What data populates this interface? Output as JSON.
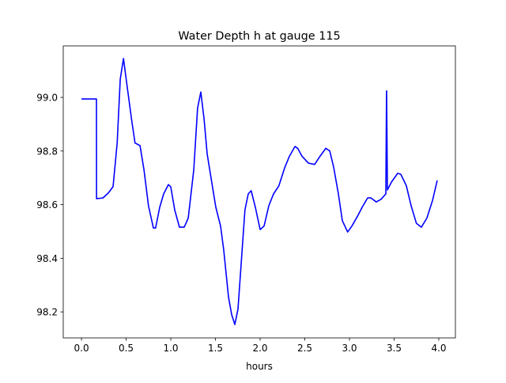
{
  "chart_data": {
    "type": "line",
    "title": "Water Depth h at gauge 115",
    "xlabel": "hours",
    "ylabel": "",
    "xlim": [
      -0.204,
      4.186
    ],
    "ylim": [
      98.103,
      99.192
    ],
    "xticks": [
      0.0,
      0.5,
      1.0,
      1.5,
      2.0,
      2.5,
      3.0,
      3.5,
      4.0
    ],
    "xtick_labels": [
      "0.0",
      "0.5",
      "1.0",
      "1.5",
      "2.0",
      "2.5",
      "3.0",
      "3.5",
      "4.0"
    ],
    "yticks": [
      98.2,
      98.4,
      98.6,
      98.8,
      99.0
    ],
    "ytick_labels": [
      "98.2",
      "98.4",
      "98.6",
      "98.8",
      "99.0"
    ],
    "grid": false,
    "series": [
      {
        "name": "h",
        "color": "#0000ff",
        "x": [
          0,
          0.168,
          0.169,
          0.24,
          0.3,
          0.354,
          0.4,
          0.434,
          0.47,
          0.5,
          0.56,
          0.6,
          0.655,
          0.7,
          0.75,
          0.805,
          0.83,
          0.876,
          0.92,
          0.973,
          1.0,
          1.044,
          1.097,
          1.15,
          1.195,
          1.257,
          1.3,
          1.336,
          1.372,
          1.407,
          1.46,
          1.504,
          1.557,
          1.593,
          1.646,
          1.681,
          1.717,
          1.752,
          1.796,
          1.83,
          1.867,
          1.9,
          1.947,
          2.0,
          2.044,
          2.097,
          2.15,
          2.21,
          2.274,
          2.327,
          2.39,
          2.42,
          2.47,
          2.54,
          2.61,
          2.67,
          2.735,
          2.78,
          2.823,
          2.876,
          2.92,
          2.98,
          3.027,
          3.09,
          3.142,
          3.204,
          3.24,
          3.3,
          3.354,
          3.407,
          3.415,
          3.416,
          3.425,
          3.47,
          3.54,
          3.575,
          3.637,
          3.69,
          3.75,
          3.805,
          3.867,
          3.93,
          3.982
        ],
        "y": [
          98.994,
          98.994,
          98.622,
          98.625,
          98.643,
          98.667,
          98.83,
          99.068,
          99.145,
          99.07,
          98.92,
          98.83,
          98.82,
          98.73,
          98.596,
          98.513,
          98.513,
          98.59,
          98.64,
          98.675,
          98.666,
          98.58,
          98.516,
          98.516,
          98.55,
          98.73,
          98.96,
          99.02,
          98.92,
          98.79,
          98.68,
          98.59,
          98.52,
          98.43,
          98.256,
          98.19,
          98.153,
          98.21,
          98.42,
          98.58,
          98.64,
          98.652,
          98.59,
          98.507,
          98.52,
          98.596,
          98.64,
          98.67,
          98.737,
          98.78,
          98.817,
          98.81,
          98.78,
          98.755,
          98.75,
          98.78,
          98.81,
          98.8,
          98.74,
          98.64,
          98.54,
          98.498,
          98.52,
          98.557,
          98.59,
          98.625,
          98.625,
          98.61,
          98.62,
          98.64,
          99.024,
          99.024,
          98.655,
          98.684,
          98.717,
          98.713,
          98.67,
          98.596,
          98.53,
          98.516,
          98.55,
          98.616,
          98.69
        ]
      }
    ]
  }
}
